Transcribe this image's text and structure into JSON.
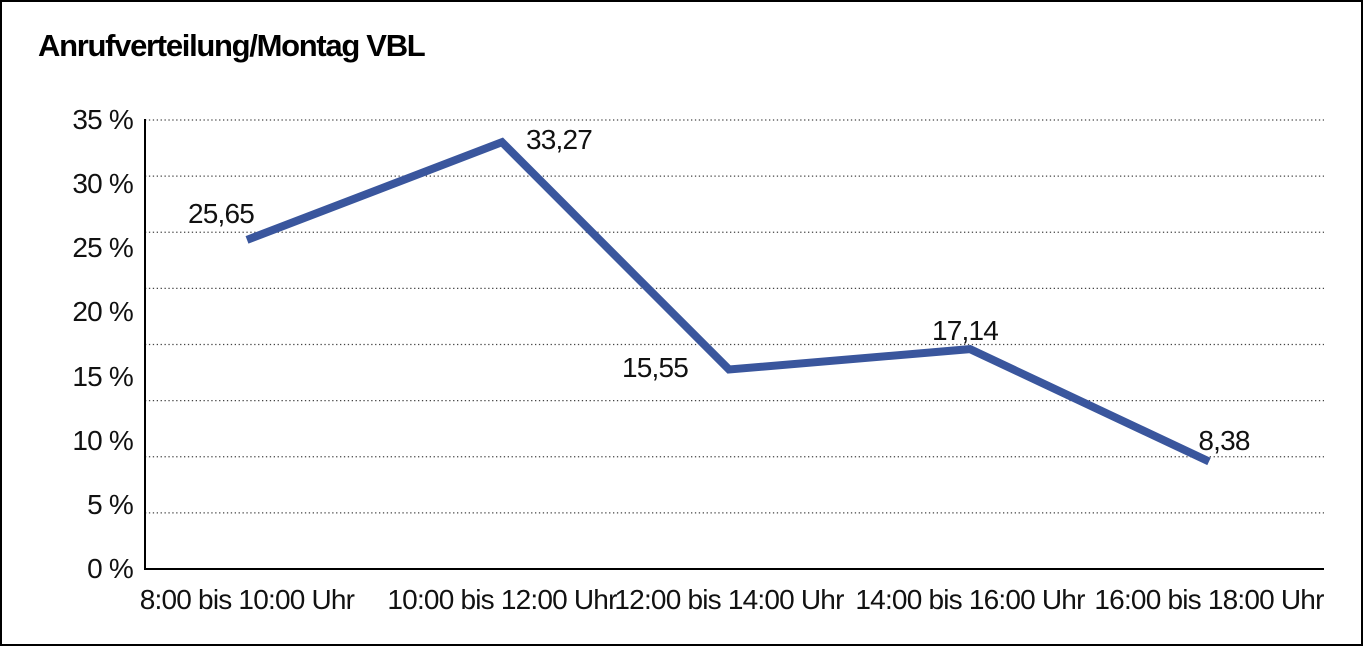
{
  "title": "Anrufverteilung/Montag VBL",
  "chart_data": {
    "type": "line",
    "title": "Anrufverteilung/Montag VBL",
    "categories": [
      "8:00 bis 10:00 Uhr",
      "10:00 bis 12:00 Uhr",
      "12:00 bis 14:00 Uhr",
      "14:00 bis 16:00 Uhr",
      "16:00 bis 18:00 Uhr"
    ],
    "values": [
      25.65,
      33.27,
      15.55,
      17.14,
      8.38
    ],
    "point_labels": [
      "25,65",
      "33,27",
      "15,55",
      "17,14",
      "8,38"
    ],
    "y_ticks": [
      "35 %",
      "30 %",
      "25 %",
      "20 %",
      "15 %",
      "10 %",
      "5 %",
      "0 %"
    ],
    "ylim": [
      0,
      35
    ],
    "xlabel": "",
    "ylabel": "",
    "grid": "horizontal-dotted",
    "legend": "none",
    "line_color": "#3a569d"
  }
}
